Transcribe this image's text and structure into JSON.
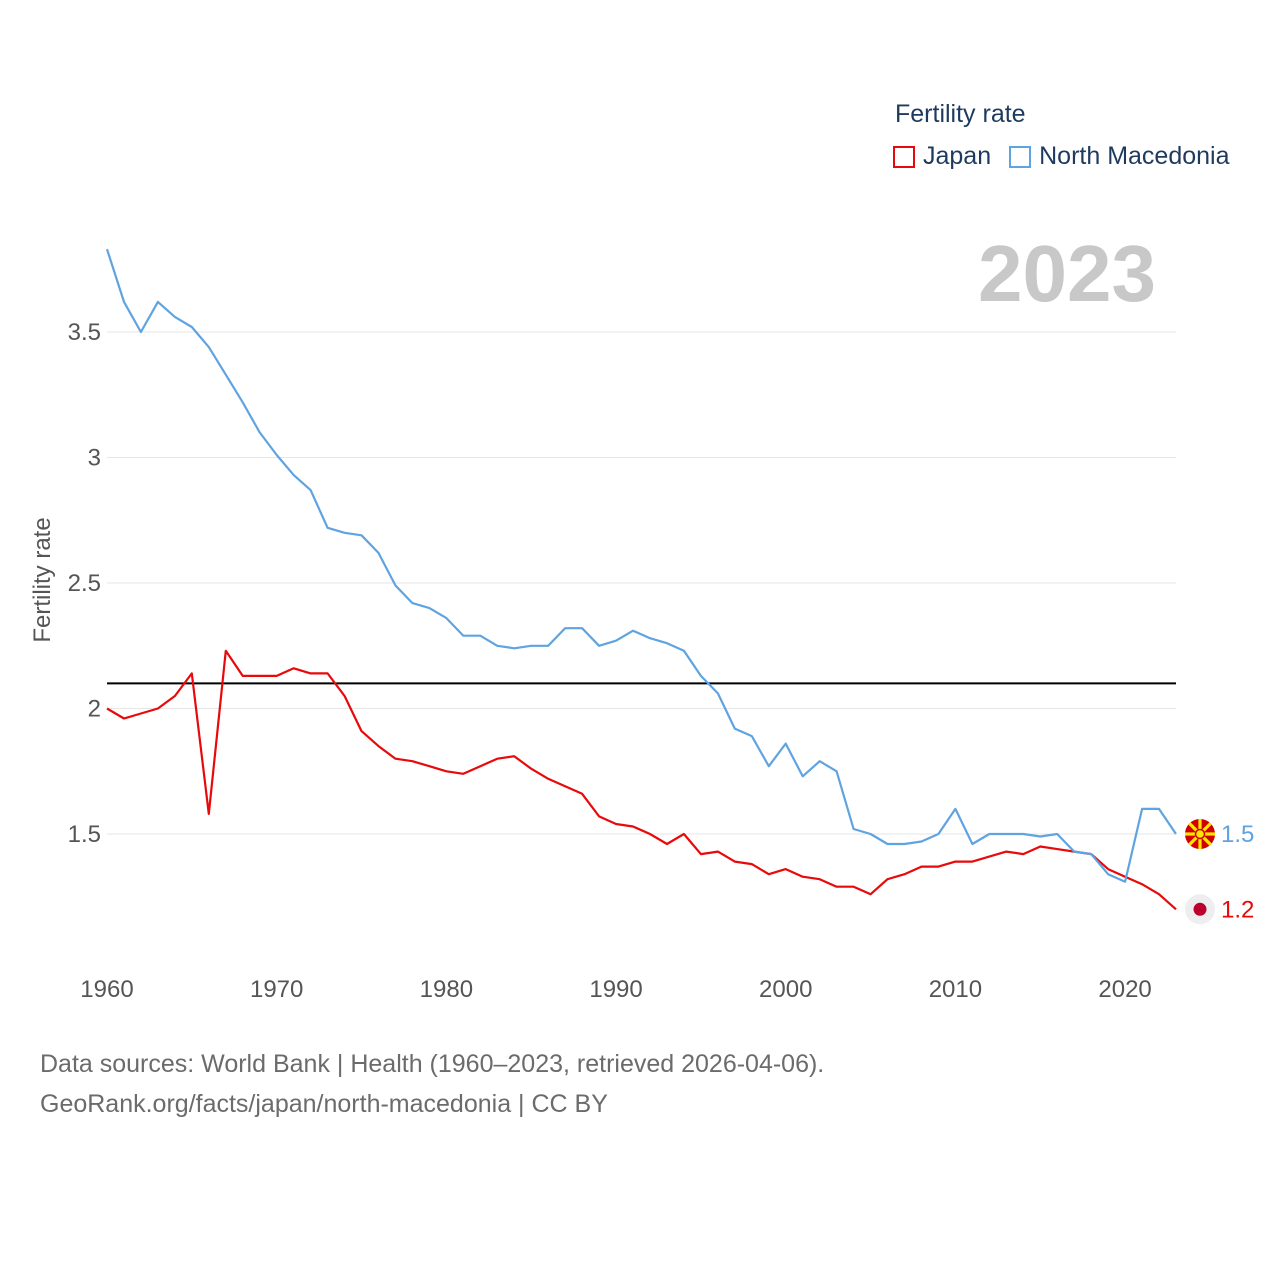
{
  "chart_data": {
    "type": "line",
    "ylabel": "Fertility rate",
    "xlabel": "",
    "xlim": [
      1960,
      2023
    ],
    "ylim": [
      1.0,
      3.85
    ],
    "x_ticks": [
      1960,
      1970,
      1980,
      1990,
      2000,
      2010,
      2020
    ],
    "y_ticks": [
      1.5,
      2,
      2.5,
      3,
      3.5
    ],
    "y_tick_labels": [
      "1.5",
      "2",
      "2.5",
      "3",
      "3.5"
    ],
    "reference_line": 2.1,
    "current_year": "2023",
    "legend_title": "Fertility rate",
    "series": [
      {
        "name": "Japan",
        "color": "#e8090a",
        "end_label": "1.2",
        "x": [
          1960,
          1961,
          1962,
          1963,
          1964,
          1965,
          1966,
          1967,
          1968,
          1969,
          1970,
          1971,
          1972,
          1973,
          1974,
          1975,
          1976,
          1977,
          1978,
          1979,
          1980,
          1981,
          1982,
          1983,
          1984,
          1985,
          1986,
          1987,
          1988,
          1989,
          1990,
          1991,
          1992,
          1993,
          1994,
          1995,
          1996,
          1997,
          1998,
          1999,
          2000,
          2001,
          2002,
          2003,
          2004,
          2005,
          2006,
          2007,
          2008,
          2009,
          2010,
          2011,
          2012,
          2013,
          2014,
          2015,
          2016,
          2017,
          2018,
          2019,
          2020,
          2021,
          2022,
          2023
        ],
        "values": [
          2.0,
          1.96,
          1.98,
          2.0,
          2.05,
          2.14,
          1.58,
          2.23,
          2.13,
          2.13,
          2.13,
          2.16,
          2.14,
          2.14,
          2.05,
          1.91,
          1.85,
          1.8,
          1.79,
          1.77,
          1.75,
          1.74,
          1.77,
          1.8,
          1.81,
          1.76,
          1.72,
          1.69,
          1.66,
          1.57,
          1.54,
          1.53,
          1.5,
          1.46,
          1.5,
          1.42,
          1.43,
          1.39,
          1.38,
          1.34,
          1.36,
          1.33,
          1.32,
          1.29,
          1.29,
          1.26,
          1.32,
          1.34,
          1.37,
          1.37,
          1.39,
          1.39,
          1.41,
          1.43,
          1.42,
          1.45,
          1.44,
          1.43,
          1.42,
          1.36,
          1.33,
          1.3,
          1.26,
          1.2
        ]
      },
      {
        "name": "North Macedonia",
        "color": "#5fa3e0",
        "end_label": "1.5",
        "x": [
          1960,
          1961,
          1962,
          1963,
          1964,
          1965,
          1966,
          1967,
          1968,
          1969,
          1970,
          1971,
          1972,
          1973,
          1974,
          1975,
          1976,
          1977,
          1978,
          1979,
          1980,
          1981,
          1982,
          1983,
          1984,
          1985,
          1986,
          1987,
          1988,
          1989,
          1990,
          1991,
          1992,
          1993,
          1994,
          1995,
          1996,
          1997,
          1998,
          1999,
          2000,
          2001,
          2002,
          2003,
          2004,
          2005,
          2006,
          2007,
          2008,
          2009,
          2010,
          2011,
          2012,
          2013,
          2014,
          2015,
          2016,
          2017,
          2018,
          2019,
          2020,
          2021,
          2022,
          2023
        ],
        "values": [
          3.83,
          3.62,
          3.5,
          3.62,
          3.56,
          3.52,
          3.44,
          3.33,
          3.22,
          3.1,
          3.01,
          2.93,
          2.87,
          2.72,
          2.7,
          2.69,
          2.62,
          2.49,
          2.42,
          2.4,
          2.36,
          2.29,
          2.29,
          2.25,
          2.24,
          2.25,
          2.25,
          2.32,
          2.32,
          2.25,
          2.27,
          2.31,
          2.28,
          2.26,
          2.23,
          2.13,
          2.06,
          1.92,
          1.89,
          1.77,
          1.86,
          1.73,
          1.79,
          1.75,
          1.52,
          1.5,
          1.46,
          1.46,
          1.47,
          1.5,
          1.6,
          1.46,
          1.5,
          1.5,
          1.5,
          1.49,
          1.5,
          1.43,
          1.42,
          1.34,
          1.31,
          1.6,
          1.6,
          1.5
        ]
      }
    ]
  },
  "footer": {
    "line1": "Data sources: World Bank | Health (1960–2023, retrieved 2026-04-06).",
    "line2": "GeoRank.org/facts/japan/north-macedonia | CC BY"
  }
}
